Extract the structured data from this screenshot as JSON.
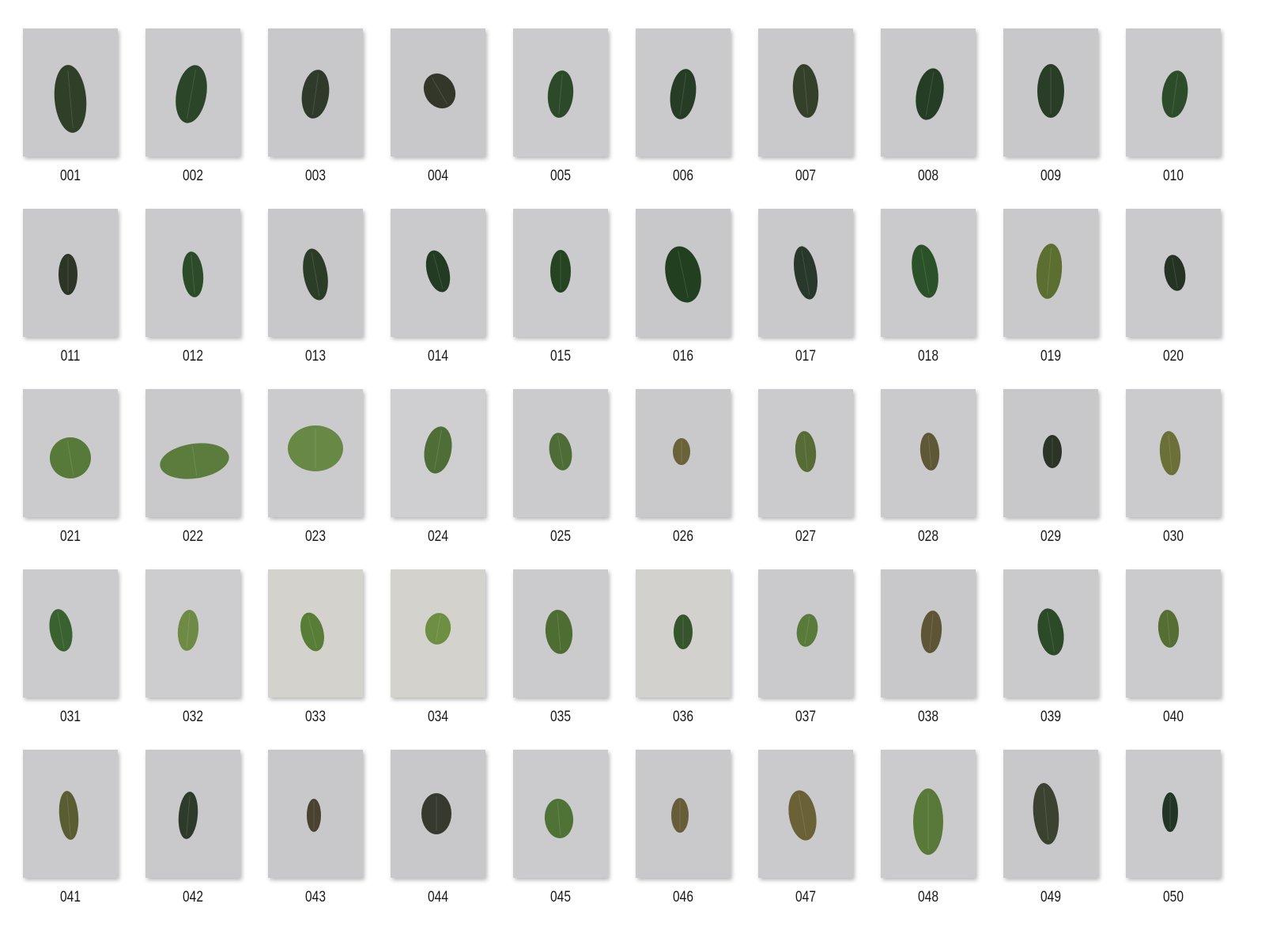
{
  "gallery": {
    "items": [
      {
        "label": "001",
        "leaf": "#2f3f28",
        "bg": "#c9c9cb"
      },
      {
        "label": "002",
        "leaf": "#2a4527",
        "bg": "#cacacc"
      },
      {
        "label": "003",
        "leaf": "#2f3a2a",
        "bg": "#c8c8ca"
      },
      {
        "label": "004",
        "leaf": "#33372a",
        "bg": "#c8c8ca"
      },
      {
        "label": "005",
        "leaf": "#2c4a2a",
        "bg": "#cbcbcd"
      },
      {
        "label": "006",
        "leaf": "#263c24",
        "bg": "#cacacc"
      },
      {
        "label": "007",
        "leaf": "#35402b",
        "bg": "#c9c9cb"
      },
      {
        "label": "008",
        "leaf": "#263d25",
        "bg": "#c9c9cb"
      },
      {
        "label": "009",
        "leaf": "#2a3e27",
        "bg": "#c8c8ca"
      },
      {
        "label": "010",
        "leaf": "#2d4d2a",
        "bg": "#cacacc"
      },
      {
        "label": "011",
        "leaf": "#2d3526",
        "bg": "#c9c9cb"
      },
      {
        "label": "012",
        "leaf": "#2c4b29",
        "bg": "#cacacc"
      },
      {
        "label": "013",
        "leaf": "#2c3d27",
        "bg": "#c8c8ca"
      },
      {
        "label": "014",
        "leaf": "#233b22",
        "bg": "#cacacc"
      },
      {
        "label": "015",
        "leaf": "#244422",
        "bg": "#cbcbcd"
      },
      {
        "label": "016",
        "leaf": "#22401f",
        "bg": "#c8c8ca"
      },
      {
        "label": "017",
        "leaf": "#28382a",
        "bg": "#c9c9cb"
      },
      {
        "label": "018",
        "leaf": "#2b5128",
        "bg": "#cacacc"
      },
      {
        "label": "019",
        "leaf": "#5d6e31",
        "bg": "#c9c9cb"
      },
      {
        "label": "020",
        "leaf": "#243324",
        "bg": "#cacacc"
      },
      {
        "label": "021",
        "leaf": "#57793a",
        "bg": "#cbcbcd"
      },
      {
        "label": "022",
        "leaf": "#5b7c3c",
        "bg": "#c9c9cb"
      },
      {
        "label": "023",
        "leaf": "#688845",
        "bg": "#cbcbcd"
      },
      {
        "label": "024",
        "leaf": "#4f6e37",
        "bg": "#cfcfd1"
      },
      {
        "label": "025",
        "leaf": "#4e6c36",
        "bg": "#cbcbcd"
      },
      {
        "label": "026",
        "leaf": "#6a6238",
        "bg": "#c9c9cb"
      },
      {
        "label": "027",
        "leaf": "#566b36",
        "bg": "#cbcbcd"
      },
      {
        "label": "028",
        "leaf": "#5e5836",
        "bg": "#cacacc"
      },
      {
        "label": "029",
        "leaf": "#2c3426",
        "bg": "#c8c8ca"
      },
      {
        "label": "030",
        "leaf": "#6b7038",
        "bg": "#cbcbcd"
      },
      {
        "label": "031",
        "leaf": "#3a6230",
        "bg": "#cbcbcd"
      },
      {
        "label": "032",
        "leaf": "#6e8a44",
        "bg": "#cdcdcf"
      },
      {
        "label": "033",
        "leaf": "#577d37",
        "bg": "#d3d2cd"
      },
      {
        "label": "034",
        "leaf": "#6e8e42",
        "bg": "#d3d2cc"
      },
      {
        "label": "035",
        "leaf": "#4e6d33",
        "bg": "#cbcbcd"
      },
      {
        "label": "036",
        "leaf": "#37552d",
        "bg": "#d2d1cd"
      },
      {
        "label": "037",
        "leaf": "#5a7a3b",
        "bg": "#cacacc"
      },
      {
        "label": "038",
        "leaf": "#5d5535",
        "bg": "#c8c8ca"
      },
      {
        "label": "039",
        "leaf": "#2c4a28",
        "bg": "#cacacc"
      },
      {
        "label": "040",
        "leaf": "#566d33",
        "bg": "#cbcbcd"
      },
      {
        "label": "041",
        "leaf": "#5a5c32",
        "bg": "#cacacc"
      },
      {
        "label": "042",
        "leaf": "#2e3a2a",
        "bg": "#c9c9cb"
      },
      {
        "label": "043",
        "leaf": "#4a4230",
        "bg": "#c8c8ca"
      },
      {
        "label": "044",
        "leaf": "#363a2e",
        "bg": "#c8c8ca"
      },
      {
        "label": "045",
        "leaf": "#4f7236",
        "bg": "#cbcbcd"
      },
      {
        "label": "046",
        "leaf": "#675d38",
        "bg": "#c9c9cb"
      },
      {
        "label": "047",
        "leaf": "#6a6236",
        "bg": "#cacacc"
      },
      {
        "label": "048",
        "leaf": "#58793a",
        "bg": "#cbcbcd"
      },
      {
        "label": "049",
        "leaf": "#3b4230",
        "bg": "#c8c8ca"
      },
      {
        "label": "050",
        "leaf": "#233626",
        "bg": "#cacacc"
      }
    ]
  }
}
